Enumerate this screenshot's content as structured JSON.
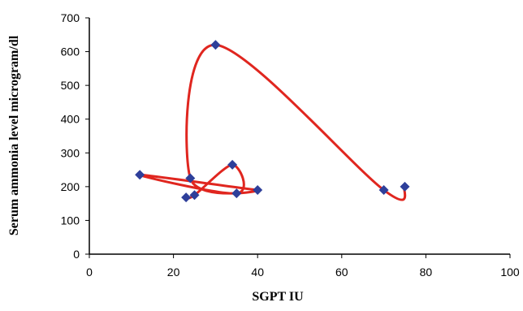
{
  "chart_data": {
    "type": "scatter",
    "title": "",
    "xlabel": "SGPT IU",
    "ylabel": "Serum ammonia level  microgram/dl",
    "xlim": [
      0,
      100
    ],
    "ylim": [
      0,
      700
    ],
    "xticks": [
      0,
      20,
      40,
      60,
      80,
      100
    ],
    "yticks": [
      0,
      100,
      200,
      300,
      400,
      500,
      600,
      700
    ],
    "grid": false,
    "legend": "none",
    "smoothed_line": true,
    "series": [
      {
        "marker": "diamond",
        "marker_color": "#2E3F9A",
        "line_color": "#E0261F",
        "points": [
          {
            "x": 75,
            "y": 200
          },
          {
            "x": 70,
            "y": 190
          },
          {
            "x": 30,
            "y": 620
          },
          {
            "x": 24,
            "y": 225
          },
          {
            "x": 40,
            "y": 190
          },
          {
            "x": 12,
            "y": 235
          },
          {
            "x": 35,
            "y": 180
          },
          {
            "x": 34,
            "y": 265
          },
          {
            "x": 25,
            "y": 175
          },
          {
            "x": 23,
            "y": 168
          }
        ]
      }
    ]
  }
}
